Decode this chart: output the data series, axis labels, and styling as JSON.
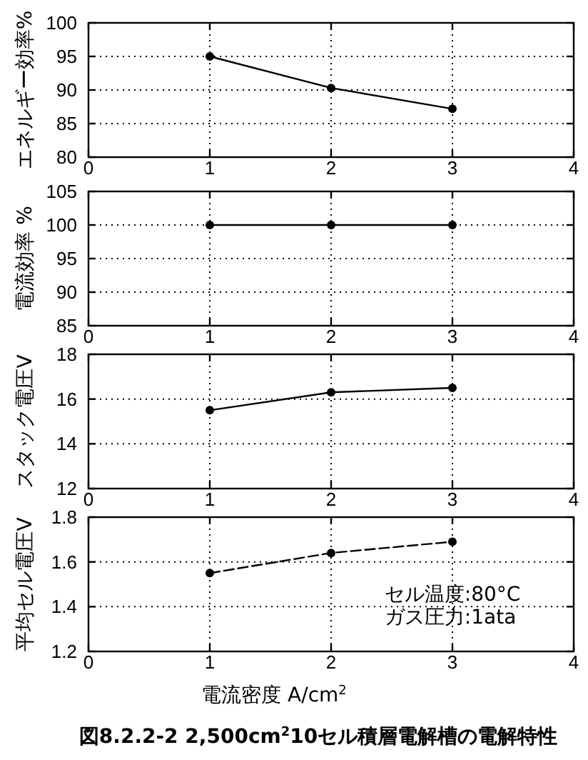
{
  "chart_data": [
    {
      "type": "line",
      "x": [
        1,
        2,
        3
      ],
      "values": [
        95,
        90.3,
        87.2
      ],
      "color": "#000000",
      "xlim": [
        0,
        4
      ],
      "xticks": [
        0,
        1,
        2,
        3,
        4
      ],
      "ylim": [
        80,
        100
      ],
      "yticks": [
        80,
        85,
        90,
        95,
        100
      ],
      "ylabel": "エネルギー効率%",
      "grid": true,
      "marker": "circle",
      "line_style": "solid"
    },
    {
      "type": "line",
      "x": [
        1,
        2,
        3
      ],
      "values": [
        100,
        100,
        100
      ],
      "color": "#000000",
      "xlim": [
        0,
        4
      ],
      "xticks": [
        0,
        1,
        2,
        3,
        4
      ],
      "ylim": [
        85,
        105
      ],
      "yticks": [
        85,
        90,
        95,
        100,
        105
      ],
      "ylabel": "電流効率 %",
      "grid": true,
      "marker": "circle",
      "line_style": "solid"
    },
    {
      "type": "line",
      "x": [
        1,
        2,
        3
      ],
      "values": [
        15.5,
        16.3,
        16.5
      ],
      "color": "#000000",
      "xlim": [
        0,
        4
      ],
      "xticks": [
        0,
        1,
        2,
        3,
        4
      ],
      "ylim": [
        12,
        18
      ],
      "yticks": [
        12,
        14,
        16,
        18
      ],
      "ylabel": "スタック電圧V",
      "grid": true,
      "marker": "circle",
      "line_style": "solid"
    },
    {
      "type": "line",
      "x": [
        1,
        2,
        3
      ],
      "values": [
        1.55,
        1.64,
        1.69
      ],
      "color": "#000000",
      "xlim": [
        0,
        4
      ],
      "xticks": [
        0,
        1,
        2,
        3,
        4
      ],
      "ylim": [
        1.2,
        1.8
      ],
      "yticks": [
        1.2,
        1.4,
        1.6,
        1.8
      ],
      "ylabel": "平均セル電圧V",
      "xlabel": "電流密度 A/cm$^{2}$",
      "grid": true,
      "marker": "circle",
      "line_style": "dashed",
      "annotations": [
        "セル温度:80°C",
        "ガス圧力:1ata"
      ],
      "title": "図8.2.2-2 2,500cm$^{2}$10セル積層電解槽の電解特性"
    }
  ]
}
